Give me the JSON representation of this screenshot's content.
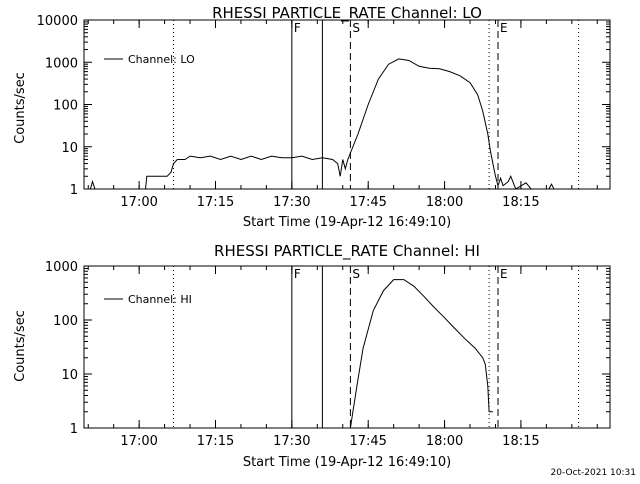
{
  "footer": {
    "timestamp": "20-Oct-2021 10:31"
  },
  "chart_data": [
    {
      "type": "line",
      "title": "RHESSI PARTICLE_RATE Channel: LO",
      "xlabel": "Start Time (19-Apr-12 16:49:10)",
      "ylabel": "Counts/sec",
      "yscale": "log",
      "xlim": [
        "16:49:10",
        "18:32:30"
      ],
      "ylim": [
        1,
        10000
      ],
      "x_ticks": [
        "17:00",
        "17:15",
        "17:30",
        "17:45",
        "18:00",
        "18:15"
      ],
      "y_ticks": [
        "1",
        "10",
        "100",
        "1000",
        "10000"
      ],
      "legend": {
        "position": "top-left",
        "entries": [
          "Channel: LO"
        ]
      },
      "series": [
        {
          "name": "Channel: LO",
          "points": [
            [
              "16:50:25",
              1
            ],
            [
              "16:50:50",
              1.5
            ],
            [
              "16:51:20",
              1
            ],
            [
              "16:59:45",
              1
            ],
            [
              "17:01:15",
              1
            ],
            [
              "17:01:30",
              2
            ],
            [
              "17:05:30",
              2
            ],
            [
              "17:06:15",
              2.5
            ],
            [
              "17:06:45",
              4
            ],
            [
              "17:07:30",
              5
            ],
            [
              "17:09:00",
              5
            ],
            [
              "17:10:00",
              6
            ],
            [
              "17:12:00",
              5.5
            ],
            [
              "17:14:00",
              6
            ],
            [
              "17:16:00",
              5
            ],
            [
              "17:18:00",
              6
            ],
            [
              "17:20:00",
              5
            ],
            [
              "17:22:00",
              6
            ],
            [
              "17:24:00",
              5
            ],
            [
              "17:26:00",
              6
            ],
            [
              "17:28:00",
              5.5
            ],
            [
              "17:30:00",
              5.5
            ],
            [
              "17:32:00",
              6
            ],
            [
              "17:34:00",
              5
            ],
            [
              "17:36:00",
              5.5
            ],
            [
              "17:38:00",
              5
            ],
            [
              "17:39:00",
              4
            ],
            [
              "17:39:30",
              2
            ],
            [
              "17:40:00",
              5
            ],
            [
              "17:40:30",
              3
            ],
            [
              "17:41:00",
              5
            ],
            [
              "17:43:00",
              20
            ],
            [
              "17:45:00",
              100
            ],
            [
              "17:47:00",
              400
            ],
            [
              "17:49:00",
              900
            ],
            [
              "17:51:00",
              1200
            ],
            [
              "17:53:00",
              1100
            ],
            [
              "17:55:00",
              800
            ],
            [
              "17:57:00",
              720
            ],
            [
              "17:59:00",
              700
            ],
            [
              "18:01:00",
              600
            ],
            [
              "18:03:00",
              480
            ],
            [
              "18:05:00",
              330
            ],
            [
              "18:06:30",
              170
            ],
            [
              "18:07:30",
              70
            ],
            [
              "18:08:30",
              20
            ],
            [
              "18:09:00",
              8
            ],
            [
              "18:09:30",
              4
            ],
            [
              "18:10:00",
              2
            ],
            [
              "18:10:30",
              1.2
            ],
            [
              "18:11:00",
              1.8
            ],
            [
              "18:11:30",
              1.2
            ],
            [
              "18:12:30",
              1.5
            ],
            [
              "18:13:00",
              2
            ],
            [
              "18:14:00",
              1
            ],
            [
              "18:16:00",
              1.4
            ],
            [
              "18:17:00",
              1
            ],
            [
              "18:20:30",
              1
            ],
            [
              "18:21:00",
              1.3
            ],
            [
              "18:21:30",
              1
            ]
          ]
        }
      ],
      "annotations": [
        {
          "text": "F",
          "time": "17:30:00",
          "style": "solid"
        },
        {
          "text": "",
          "time": "17:36:00",
          "style": "solid"
        },
        {
          "text": "S",
          "time": "17:41:30",
          "style": "dashed"
        },
        {
          "text": "E",
          "time": "18:10:30",
          "style": "dashed"
        },
        {
          "text": "",
          "time": "17:06:45",
          "style": "dotted"
        },
        {
          "text": "",
          "time": "18:08:45",
          "style": "dotted"
        },
        {
          "text": "",
          "time": "18:26:20",
          "style": "dotted"
        }
      ]
    },
    {
      "type": "line",
      "title": "RHESSI PARTICLE_RATE Channel: HI",
      "xlabel": "Start Time (19-Apr-12 16:49:10)",
      "ylabel": "Counts/sec",
      "yscale": "log",
      "xlim": [
        "16:49:10",
        "18:32:30"
      ],
      "ylim": [
        1,
        1000
      ],
      "x_ticks": [
        "17:00",
        "17:15",
        "17:30",
        "17:45",
        "18:00",
        "18:15"
      ],
      "y_ticks": [
        "1",
        "10",
        "100",
        "1000"
      ],
      "legend": {
        "position": "top-left",
        "entries": [
          "Channel: HI"
        ]
      },
      "series": [
        {
          "name": "Channel: HI",
          "points": [
            [
              "17:41:30",
              1
            ],
            [
              "17:42:00",
              2
            ],
            [
              "17:43:00",
              8
            ],
            [
              "17:44:00",
              30
            ],
            [
              "17:46:00",
              150
            ],
            [
              "17:48:00",
              350
            ],
            [
              "17:50:00",
              560
            ],
            [
              "17:52:00",
              560
            ],
            [
              "17:54:00",
              420
            ],
            [
              "17:56:00",
              270
            ],
            [
              "17:58:00",
              170
            ],
            [
              "18:00:00",
              110
            ],
            [
              "18:02:00",
              70
            ],
            [
              "18:04:00",
              45
            ],
            [
              "18:06:00",
              30
            ],
            [
              "18:07:30",
              20
            ],
            [
              "18:08:00",
              15
            ],
            [
              "18:08:30",
              6
            ],
            [
              "18:08:45",
              2
            ],
            [
              "18:09:30",
              2
            ]
          ]
        }
      ],
      "annotations": [
        {
          "text": "F",
          "time": "17:30:00",
          "style": "solid"
        },
        {
          "text": "",
          "time": "17:36:00",
          "style": "solid"
        },
        {
          "text": "S",
          "time": "17:41:30",
          "style": "dashed"
        },
        {
          "text": "E",
          "time": "18:10:30",
          "style": "dashed"
        },
        {
          "text": "",
          "time": "17:06:45",
          "style": "dotted"
        },
        {
          "text": "",
          "time": "18:08:45",
          "style": "dotted"
        },
        {
          "text": "",
          "time": "18:26:20",
          "style": "dotted"
        }
      ]
    }
  ]
}
